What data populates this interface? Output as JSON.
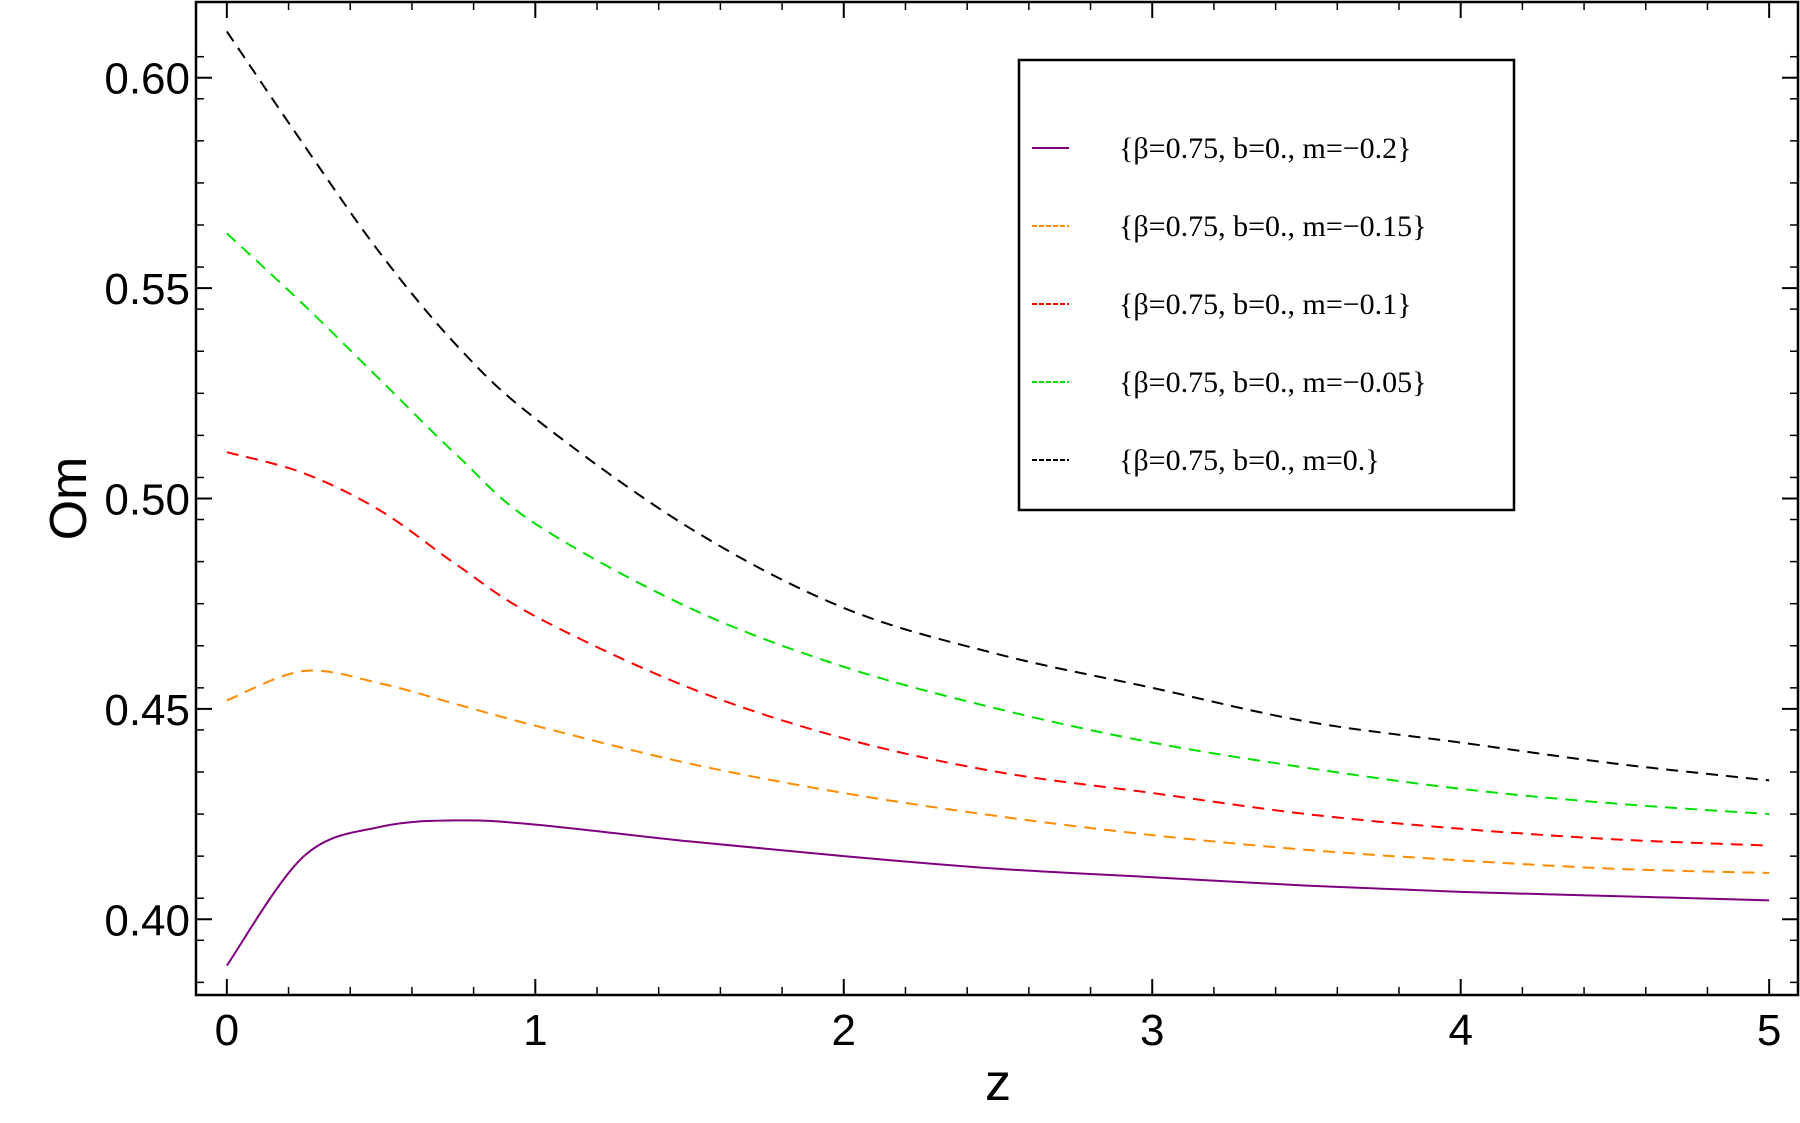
{
  "chart_data": {
    "type": "line",
    "title": "",
    "xlabel": "z",
    "ylabel": "Om",
    "xlim": [
      -0.1,
      5.1
    ],
    "ylim": [
      0.382,
      0.618
    ],
    "xticks": [
      0,
      1,
      2,
      3,
      4,
      5
    ],
    "xtick_labels": [
      "0",
      "1",
      "2",
      "3",
      "4",
      "5"
    ],
    "yticks": [
      0.4,
      0.45,
      0.5,
      0.55,
      0.6
    ],
    "ytick_labels": [
      "0.40",
      "0.45",
      "0.50",
      "0.55",
      "0.60"
    ],
    "grid": false,
    "legend_position": "top-right",
    "x": [
      0,
      0.25,
      0.5,
      0.75,
      1,
      1.5,
      2,
      2.5,
      3,
      3.5,
      4,
      4.5,
      5
    ],
    "series": [
      {
        "name": "{β=0.75, b=0., m=−0.2}",
        "color": "#800080",
        "dash": "solid",
        "values": [
          0.389,
          0.415,
          0.422,
          0.4235,
          0.4225,
          0.4185,
          0.415,
          0.412,
          0.41,
          0.408,
          0.4065,
          0.4055,
          0.4045
        ]
      },
      {
        "name": "{β=0.75, b=0., m=−0.15}",
        "color": "#ff8c00",
        "dash": "dashed",
        "values": [
          0.452,
          0.459,
          0.456,
          0.451,
          0.446,
          0.437,
          0.43,
          0.4245,
          0.42,
          0.4165,
          0.414,
          0.412,
          0.411
        ]
      },
      {
        "name": "{β=0.75, b=0., m=−0.1}",
        "color": "#ff0000",
        "dash": "dashed",
        "values": [
          0.511,
          0.506,
          0.497,
          0.484,
          0.472,
          0.455,
          0.443,
          0.435,
          0.43,
          0.425,
          0.4215,
          0.419,
          0.4175
        ]
      },
      {
        "name": "{β=0.75, b=0., m=−0.05}",
        "color": "#00e000",
        "dash": "dashed",
        "values": [
          0.563,
          0.546,
          0.528,
          0.51,
          0.494,
          0.474,
          0.46,
          0.45,
          0.442,
          0.436,
          0.431,
          0.4275,
          0.425
        ]
      },
      {
        "name": "{β=0.75, b=0., m=0.}",
        "color": "#000000",
        "dash": "dashed",
        "values": [
          0.611,
          0.584,
          0.558,
          0.536,
          0.519,
          0.493,
          0.474,
          0.463,
          0.455,
          0.447,
          0.442,
          0.437,
          0.433
        ]
      }
    ]
  }
}
